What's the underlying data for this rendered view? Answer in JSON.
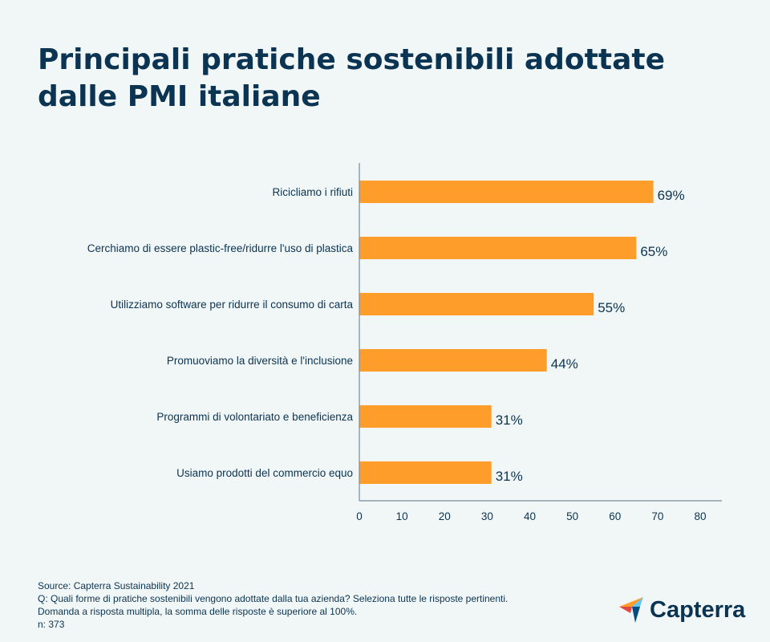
{
  "chart_data": {
    "type": "bar",
    "orientation": "horizontal",
    "title": "Principali pratiche sostenibili adottate dalle PMI italiane",
    "categories": [
      "Ricicliamo i rifiuti",
      "Cerchiamo di essere plastic-free/ridurre l'uso di plastica",
      "Utilizziamo software per ridurre il consumo di carta",
      "Promuoviamo la diversità e l'inclusione",
      "Programmi di volontariato e beneficienza",
      "Usiamo prodotti del commercio equo"
    ],
    "values": [
      69,
      65,
      55,
      44,
      31,
      31
    ],
    "data_labels": [
      "69%",
      "65%",
      "55%",
      "44%",
      "31%",
      "31%"
    ],
    "xlim": [
      0,
      85
    ],
    "xticks": [
      "0",
      "10",
      "20",
      "30",
      "40",
      "50",
      "60",
      "70",
      "80"
    ],
    "xlabel": "",
    "ylabel": "",
    "grid": false,
    "bar_color": "#ff9d2b"
  },
  "footer": {
    "source": "Source: Capterra Sustainability 2021",
    "question": "Q: Quali forme di pratiche sostenibili vengono adottate dalla tua azienda? Seleziona tutte le risposte pertinenti.",
    "note": "Domanda a risposta multipla, la somma delle risposte è superiore al 100%.",
    "n": "n: 373"
  },
  "logo": {
    "text": "Capterra"
  },
  "colors": {
    "text": "#0b3452",
    "background": "#f1f6f7"
  }
}
